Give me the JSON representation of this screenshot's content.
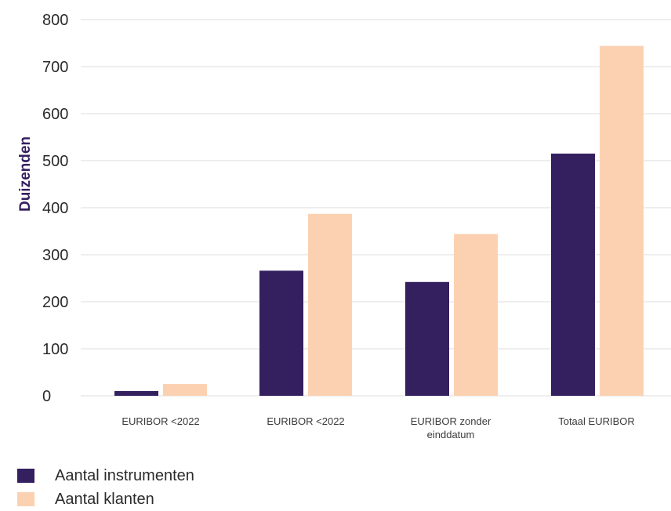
{
  "chart_data": {
    "type": "bar",
    "categories": [
      [
        "EURIBOR <2022"
      ],
      [
        "EURIBOR <2022"
      ],
      [
        "EURIBOR zonder",
        "einddatum"
      ],
      [
        "Totaal EURIBOR"
      ]
    ],
    "series": [
      {
        "name": "Aantal instrumenten",
        "color": "#341f5f",
        "values": [
          10,
          266,
          242,
          515
        ]
      },
      {
        "name": "Aantal klanten",
        "color": "#fcd1b1",
        "values": [
          25,
          387,
          344,
          744
        ]
      }
    ],
    "ylabel": "Duizenden",
    "ylabel_color": "#341f5f",
    "ylim": [
      0,
      800
    ],
    "yticks": [
      0,
      100,
      200,
      300,
      400,
      500,
      600,
      700,
      800
    ],
    "grid": true,
    "legend_position": "bottom-left"
  }
}
